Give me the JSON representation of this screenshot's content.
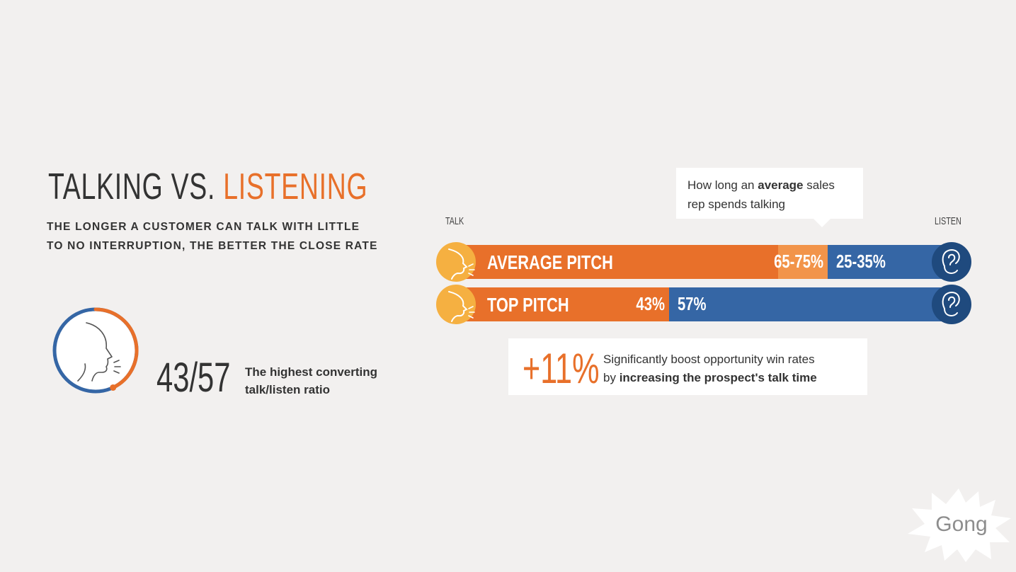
{
  "header": {
    "title_part1": "TALKING VS. ",
    "title_part2": "LISTENING",
    "subtitle_line1": "THE LONGER A CUSTOMER CAN TALK WITH LITTLE",
    "subtitle_line2": "TO NO INTERRUPTION, THE BETTER THE CLOSE RATE"
  },
  "ratio_stat": {
    "value": "43/57",
    "caption_line1": "The highest converting",
    "caption_line2": "talk/listen ratio",
    "ring_talk_fraction": 0.43,
    "ring_listen_fraction": 0.57
  },
  "callout_top": {
    "text_before": "How long an ",
    "text_bold": "average",
    "text_after": " sales rep spends talking"
  },
  "boost_callout": {
    "value": "+11%",
    "line1": "Significantly boost opportunity win rates",
    "line2_prefix": "by ",
    "line2_bold": "increasing the prospect's talk time"
  },
  "logo": {
    "text": "Gong"
  },
  "icons": {
    "talk": "speaking-face-icon",
    "listen": "ear-icon"
  },
  "colors": {
    "orange": "#e8702a",
    "orange_light": "#f2944a",
    "blue": "#3566a5",
    "blue_dark": "#214f8c",
    "yellow": "#f5b041",
    "navy_icon": "#1f4a7e"
  },
  "chart_data": {
    "type": "bar",
    "orientation": "horizontal",
    "stacked": true,
    "xlabel_left": "TALK",
    "xlabel_right": "LISTEN",
    "xlim": [
      0,
      100
    ],
    "unit": "%",
    "categories": [
      "AVERAGE PITCH",
      "TOP PITCH"
    ],
    "series": [
      {
        "name": "Talk",
        "values": [
          65,
          43
        ],
        "range_labels": [
          "65-75%",
          "43%"
        ],
        "ranges": [
          [
            65,
            75
          ],
          [
            43,
            43
          ]
        ]
      },
      {
        "name": "Listen",
        "values": [
          35,
          57
        ],
        "range_labels": [
          "25-35%",
          "57%"
        ],
        "ranges": [
          [
            25,
            35
          ],
          [
            57,
            57
          ]
        ]
      }
    ]
  }
}
